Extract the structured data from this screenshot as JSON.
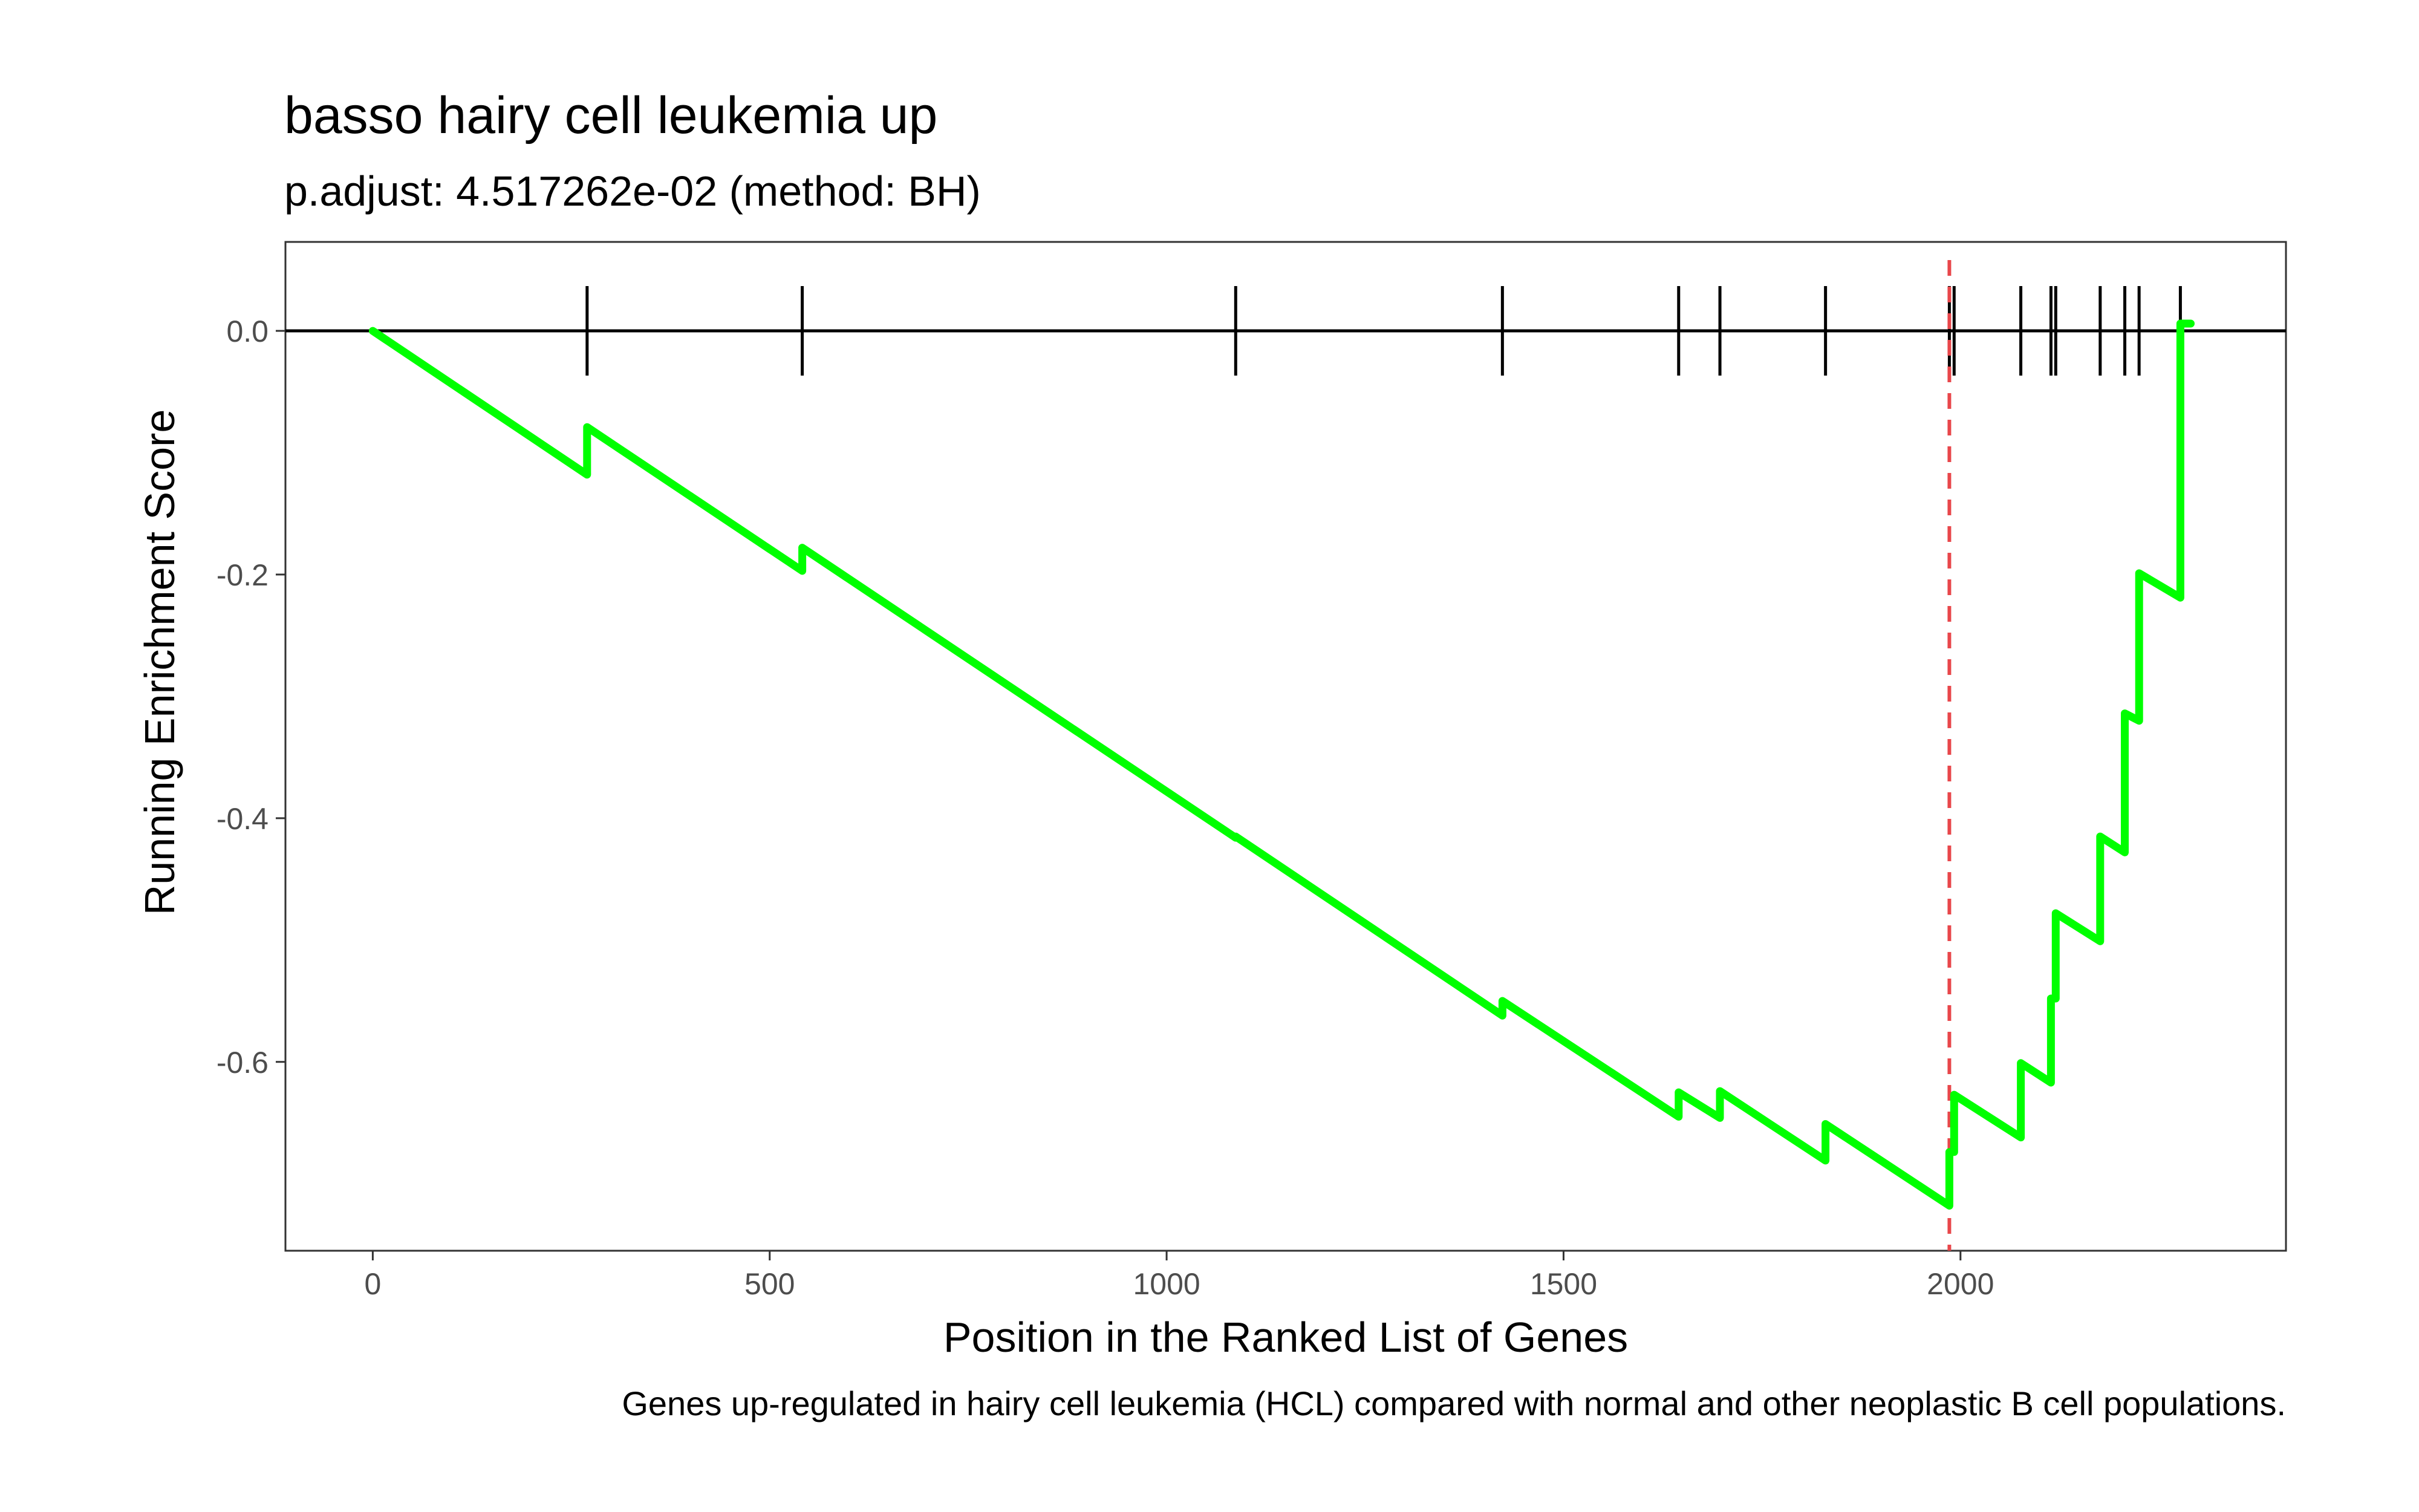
{
  "chart_data": {
    "type": "line",
    "title": "basso hairy cell leukemia up",
    "subtitle": "p.adjust: 4.517262e-02 (method: BH)",
    "xlabel": "Position in the Ranked List of Genes",
    "ylabel": "Running Enrichment Score",
    "caption": "Genes up-regulated in hairy cell leukemia (HCL) compared with normal and other neoplastic B cell populations.",
    "xlim": [
      -110,
      2410
    ],
    "ylim": [
      -0.755,
      0.073
    ],
    "x_ticks": [
      0,
      500,
      1000,
      1500,
      2000
    ],
    "x_tick_labels": [
      "0",
      "500",
      "1000",
      "1500",
      "2000"
    ],
    "y_ticks": [
      0.0,
      -0.2,
      -0.4,
      -0.6
    ],
    "y_tick_labels": [
      "0.0",
      "-0.2",
      "-0.4",
      "-0.6"
    ],
    "grid": false,
    "line_color": "#00ff00",
    "marker_color": "#000000",
    "cutoff_color": "#e8474b",
    "cutoff_x": 1986,
    "hits": [
      270,
      541,
      1087,
      1423,
      1645,
      1697,
      1830,
      1986,
      1992,
      2076,
      2114,
      2120,
      2176,
      2207,
      2225,
      2277
    ],
    "series": [
      {
        "values": [
          [
            0,
            0.0
          ],
          [
            270,
            -0.118
          ],
          [
            270,
            -0.079
          ],
          [
            541,
            -0.197
          ],
          [
            541,
            -0.178
          ],
          [
            1087,
            -0.416
          ],
          [
            1087,
            -0.415
          ],
          [
            1423,
            -0.562
          ],
          [
            1423,
            -0.55
          ],
          [
            1645,
            -0.645
          ],
          [
            1645,
            -0.625
          ],
          [
            1697,
            -0.646
          ],
          [
            1697,
            -0.624
          ],
          [
            1830,
            -0.681
          ],
          [
            1830,
            -0.651
          ],
          [
            1986,
            -0.718
          ],
          [
            1986,
            -0.674
          ],
          [
            1992,
            -0.674
          ],
          [
            1992,
            -0.627
          ],
          [
            2076,
            -0.662
          ],
          [
            2076,
            -0.601
          ],
          [
            2114,
            -0.617
          ],
          [
            2114,
            -0.548
          ],
          [
            2120,
            -0.548
          ],
          [
            2120,
            -0.478
          ],
          [
            2176,
            -0.501
          ],
          [
            2176,
            -0.415
          ],
          [
            2207,
            -0.428
          ],
          [
            2207,
            -0.314
          ],
          [
            2225,
            -0.32
          ],
          [
            2225,
            -0.199
          ],
          [
            2277,
            -0.219
          ],
          [
            2277,
            0.006
          ],
          [
            2290,
            0.006
          ]
        ]
      }
    ]
  }
}
